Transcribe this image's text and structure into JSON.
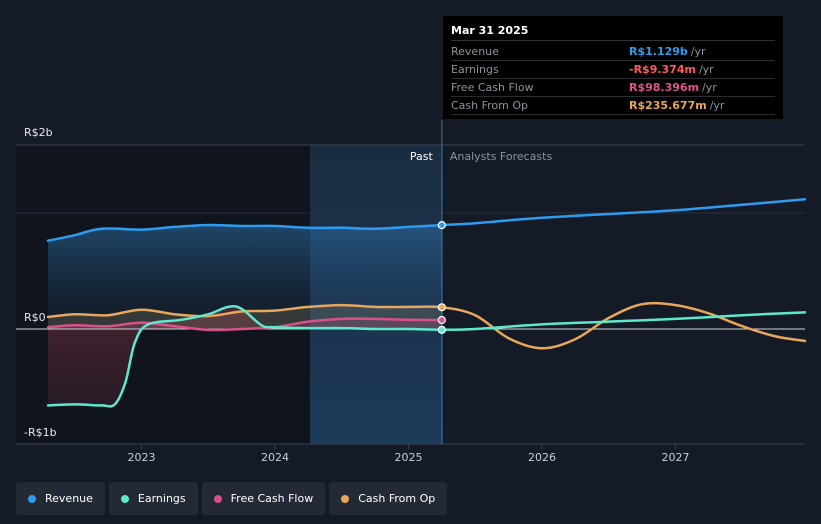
{
  "tooltip": {
    "date": "Mar 31 2025",
    "rows": [
      {
        "label": "Revenue",
        "value": "R$1.129b",
        "unit": "/yr",
        "color": "#2d9cf0"
      },
      {
        "label": "Earnings",
        "value": "-R$9.374m",
        "unit": "/yr",
        "color": "#ff5a5f"
      },
      {
        "label": "Free Cash Flow",
        "value": "R$98.396m",
        "unit": "/yr",
        "color": "#e0548e"
      },
      {
        "label": "Cash From Op",
        "value": "R$235.677m",
        "unit": "/yr",
        "color": "#e8a65a"
      }
    ]
  },
  "legend": [
    {
      "label": "Revenue",
      "color": "#2d9cf0"
    },
    {
      "label": "Earnings",
      "color": "#5ee8cf"
    },
    {
      "label": "Free Cash Flow",
      "color": "#d9508a"
    },
    {
      "label": "Cash From Op",
      "color": "#e8a65a"
    }
  ],
  "chart_data": {
    "type": "line",
    "title": "",
    "xlabel": "",
    "ylabel": "",
    "units": "BRL",
    "xlim": [
      2022.3,
      2027.97
    ],
    "ylim": [
      -1.0,
      2.0
    ],
    "y_tick_labels": [
      {
        "value": 2.0,
        "label": "R$2b"
      },
      {
        "value": 0.0,
        "label": "R$0"
      },
      {
        "value": -1.0,
        "label": "-R$1b"
      }
    ],
    "x_ticks": [
      {
        "value": 2023.0,
        "label": "2023"
      },
      {
        "value": 2024.0,
        "label": "2024"
      },
      {
        "value": 2025.0,
        "label": "2025"
      },
      {
        "value": 2026.0,
        "label": "2026"
      },
      {
        "value": 2027.0,
        "label": "2027"
      }
    ],
    "past_label": "Past",
    "forecast_label": "Analysts Forecasts",
    "divider_x": 2025.25,
    "highlight_start_x": 2024.25,
    "series": [
      {
        "name": "Revenue",
        "color": "#2d9cf0",
        "fill": true,
        "points": [
          [
            2022.3,
            0.96
          ],
          [
            2022.5,
            1.02
          ],
          [
            2022.7,
            1.09
          ],
          [
            2023.0,
            1.08
          ],
          [
            2023.25,
            1.11
          ],
          [
            2023.5,
            1.13
          ],
          [
            2023.75,
            1.12
          ],
          [
            2024.0,
            1.12
          ],
          [
            2024.25,
            1.1
          ],
          [
            2024.5,
            1.1
          ],
          [
            2024.75,
            1.09
          ],
          [
            2025.0,
            1.11
          ],
          [
            2025.25,
            1.129
          ],
          [
            2025.5,
            1.15
          ],
          [
            2025.75,
            1.18
          ],
          [
            2026.0,
            1.21
          ],
          [
            2026.5,
            1.25
          ],
          [
            2027.0,
            1.29
          ],
          [
            2027.5,
            1.35
          ],
          [
            2027.97,
            1.41
          ]
        ]
      },
      {
        "name": "Earnings",
        "color": "#5ee8cf",
        "fill": true,
        "points": [
          [
            2022.3,
            -0.83
          ],
          [
            2022.5,
            -0.82
          ],
          [
            2022.7,
            -0.83
          ],
          [
            2022.8,
            -0.82
          ],
          [
            2022.88,
            -0.58
          ],
          [
            2022.95,
            -0.15
          ],
          [
            2023.05,
            0.05
          ],
          [
            2023.3,
            0.1
          ],
          [
            2023.5,
            0.16
          ],
          [
            2023.65,
            0.24
          ],
          [
            2023.75,
            0.22
          ],
          [
            2023.9,
            0.04
          ],
          [
            2024.0,
            0.02
          ],
          [
            2024.25,
            0.01
          ],
          [
            2024.5,
            0.01
          ],
          [
            2024.75,
            0.0
          ],
          [
            2025.0,
            0.0
          ],
          [
            2025.25,
            -0.009
          ],
          [
            2025.5,
            0.0
          ],
          [
            2026.0,
            0.05
          ],
          [
            2026.5,
            0.08
          ],
          [
            2027.0,
            0.11
          ],
          [
            2027.5,
            0.15
          ],
          [
            2027.97,
            0.18
          ]
        ]
      },
      {
        "name": "Free Cash Flow",
        "color": "#d9508a",
        "fill": true,
        "points": [
          [
            2022.3,
            0.02
          ],
          [
            2022.5,
            0.04
          ],
          [
            2022.75,
            0.03
          ],
          [
            2023.0,
            0.07
          ],
          [
            2023.25,
            0.03
          ],
          [
            2023.5,
            -0.01
          ],
          [
            2023.75,
            0.0
          ],
          [
            2024.0,
            0.02
          ],
          [
            2024.25,
            0.08
          ],
          [
            2024.5,
            0.11
          ],
          [
            2024.75,
            0.11
          ],
          [
            2025.0,
            0.1
          ],
          [
            2025.25,
            0.098
          ]
        ]
      },
      {
        "name": "Cash From Op",
        "color": "#e8a65a",
        "fill": true,
        "points": [
          [
            2022.3,
            0.13
          ],
          [
            2022.5,
            0.16
          ],
          [
            2022.75,
            0.15
          ],
          [
            2023.0,
            0.21
          ],
          [
            2023.25,
            0.16
          ],
          [
            2023.5,
            0.14
          ],
          [
            2023.75,
            0.19
          ],
          [
            2024.0,
            0.2
          ],
          [
            2024.25,
            0.24
          ],
          [
            2024.5,
            0.26
          ],
          [
            2024.75,
            0.24
          ],
          [
            2025.0,
            0.24
          ],
          [
            2025.25,
            0.236
          ],
          [
            2025.5,
            0.15
          ],
          [
            2025.75,
            -0.1
          ],
          [
            2026.0,
            -0.21
          ],
          [
            2026.25,
            -0.11
          ],
          [
            2026.5,
            0.12
          ],
          [
            2026.75,
            0.27
          ],
          [
            2027.0,
            0.26
          ],
          [
            2027.25,
            0.17
          ],
          [
            2027.5,
            0.03
          ],
          [
            2027.75,
            -0.08
          ],
          [
            2027.97,
            -0.13
          ]
        ]
      }
    ]
  }
}
